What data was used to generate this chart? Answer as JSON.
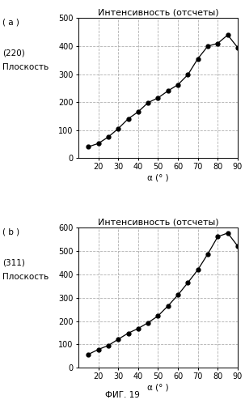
{
  "plot_a": {
    "title": "Интенсивность (отсчеты)",
    "ylabel_line1": "(220)",
    "ylabel_line2": "Плоскость",
    "xlabel": "α (° )",
    "x": [
      15,
      20,
      25,
      30,
      35,
      40,
      45,
      50,
      55,
      60,
      65,
      70,
      75,
      80,
      85,
      90
    ],
    "y": [
      40,
      52,
      75,
      105,
      140,
      165,
      198,
      215,
      240,
      262,
      298,
      355,
      400,
      410,
      440,
      395
    ],
    "xlim": [
      10,
      90
    ],
    "ylim": [
      0,
      500
    ],
    "xticks": [
      20,
      30,
      40,
      50,
      60,
      70,
      80,
      90
    ],
    "yticks": [
      0,
      100,
      200,
      300,
      400,
      500
    ],
    "label": "( a )"
  },
  "plot_b": {
    "title": "Интенсивность (отсчеты)",
    "ylabel_line1": "(311)",
    "ylabel_line2": "Плоскость",
    "xlabel": "α (° )",
    "x": [
      15,
      20,
      25,
      30,
      35,
      40,
      45,
      50,
      55,
      60,
      65,
      70,
      75,
      80,
      85,
      90
    ],
    "y": [
      57,
      78,
      95,
      122,
      148,
      168,
      193,
      222,
      265,
      312,
      365,
      420,
      488,
      562,
      578,
      522
    ],
    "xlim": [
      10,
      90
    ],
    "ylim": [
      0,
      600
    ],
    "xticks": [
      20,
      30,
      40,
      50,
      60,
      70,
      80,
      90
    ],
    "yticks": [
      0,
      100,
      200,
      300,
      400,
      500,
      600
    ],
    "label": "( b )"
  },
  "fig_label": "ФИГ. 19",
  "line_color": "#000000",
  "marker": "o",
  "marker_size": 3.5,
  "grid_color": "#b0b0b0",
  "grid_style": "--",
  "background_color": "#ffffff",
  "title_fontsize": 8,
  "label_fontsize": 7.5,
  "tick_fontsize": 7,
  "side_label_fontsize": 7.5
}
